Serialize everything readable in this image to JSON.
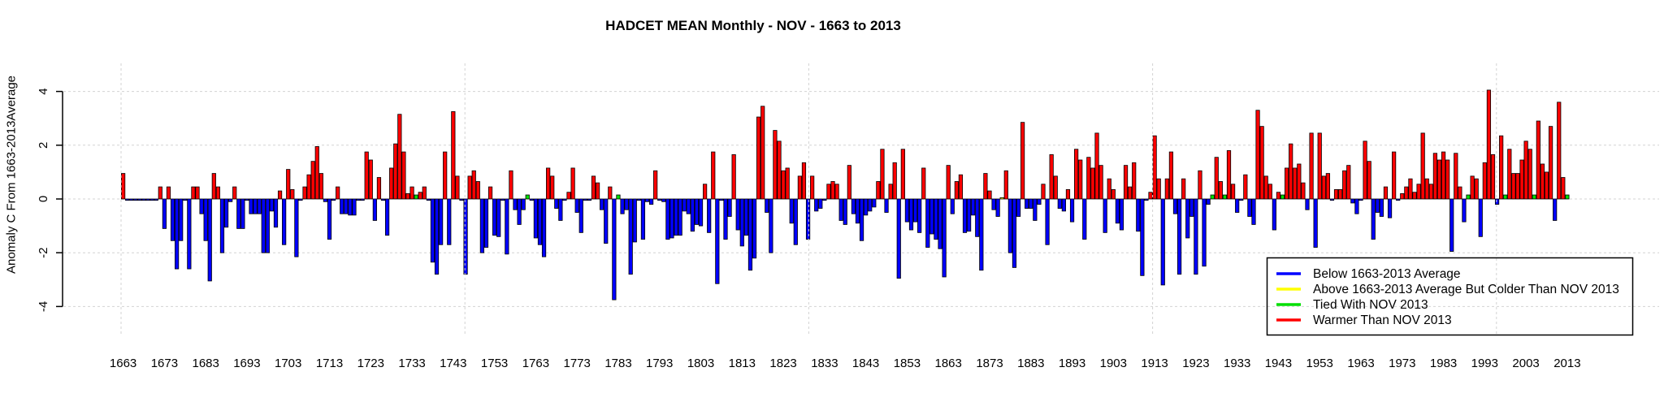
{
  "title": "HADCET MEAN Monthly - NOV - 1663 to 2013",
  "y_axis": {
    "label": "Anomaly C From 1663-2013Average",
    "ticks": [
      -4,
      -2,
      0,
      2,
      4
    ]
  },
  "x_axis": {
    "tick_years": [
      1663,
      1673,
      1683,
      1693,
      1703,
      1713,
      1723,
      1733,
      1743,
      1753,
      1763,
      1773,
      1783,
      1793,
      1803,
      1813,
      1823,
      1833,
      1843,
      1853,
      1863,
      1873,
      1883,
      1893,
      1903,
      1913,
      1923,
      1933,
      1943,
      1953,
      1963,
      1973,
      1983,
      1993,
      2003,
      2013
    ]
  },
  "legend": {
    "items": [
      {
        "label": "Below 1663-2013 Average",
        "color": "#0000FF"
      },
      {
        "label": "Above 1663-2013 Average But Colder Than NOV 2013",
        "color": "#FFFF00"
      },
      {
        "label": "Tied With NOV 2013",
        "color": "#00DF00"
      },
      {
        "label": "Warmer Than NOV 2013",
        "color": "#FF0000"
      }
    ]
  },
  "chart_data": {
    "type": "bar",
    "title": "HADCET MEAN Monthly - NOV - 1663 to 2013",
    "xlabel": "",
    "ylabel": "Anomaly C From 1663-2013Average",
    "ylim": [
      -4,
      4
    ],
    "grid": true,
    "legend_position": "bottom-right",
    "start_year": 1663,
    "end_year": 2013,
    "values": [
      0.95,
      -0.05,
      -0.05,
      -0.05,
      -0.05,
      -0.05,
      -0.05,
      -0.05,
      -0.05,
      0.45,
      -1.1,
      0.45,
      -1.55,
      -2.6,
      -1.55,
      -0.05,
      -2.6,
      0.45,
      0.45,
      -0.55,
      -1.55,
      -3.05,
      0.95,
      0.45,
      -2.0,
      -1.05,
      -0.1,
      0.45,
      -1.1,
      -1.1,
      -0.05,
      -0.55,
      -0.55,
      -0.55,
      -2.0,
      -2.0,
      -0.45,
      -1.05,
      0.3,
      -1.7,
      1.1,
      0.35,
      -2.15,
      -0.05,
      0.45,
      0.9,
      1.4,
      1.95,
      0.95,
      -0.1,
      -1.5,
      -0.05,
      0.45,
      -0.55,
      -0.55,
      -0.6,
      -0.6,
      -0.05,
      -0.05,
      1.75,
      1.45,
      -0.8,
      0.8,
      -0.05,
      -1.35,
      1.15,
      2.05,
      3.15,
      1.75,
      0.2,
      0.45,
      0.15,
      0.25,
      0.45,
      -0.05,
      -2.35,
      -2.8,
      -1.7,
      1.75,
      -1.7,
      3.25,
      0.85,
      -0.05,
      -2.8,
      0.85,
      1.05,
      0.65,
      -2.0,
      -1.8,
      0.45,
      -1.35,
      -1.4,
      -0.05,
      -2.05,
      1.05,
      -0.4,
      -0.95,
      -0.4,
      0.15,
      -0.05,
      -1.45,
      -1.7,
      -2.15,
      1.15,
      0.85,
      -0.35,
      -0.8,
      -0.05,
      0.25,
      1.15,
      -0.5,
      -1.25,
      -0.05,
      -0.05,
      0.85,
      0.6,
      -0.4,
      -1.65,
      0.45,
      -3.75,
      0.15,
      -0.55,
      -0.4,
      -2.8,
      -1.6,
      -0.05,
      -1.5,
      -0.1,
      -0.2,
      1.05,
      -0.05,
      -0.1,
      -1.5,
      -1.45,
      -1.35,
      -1.35,
      -0.45,
      -0.55,
      -1.2,
      -0.95,
      -1.0,
      0.55,
      -1.25,
      1.75,
      -3.15,
      -0.05,
      -1.5,
      -0.65,
      1.65,
      -1.15,
      -1.75,
      -1.35,
      -2.65,
      -2.2,
      3.05,
      3.45,
      -0.5,
      -2.0,
      2.55,
      2.15,
      1.05,
      1.15,
      -0.9,
      -1.7,
      0.85,
      1.35,
      -1.5,
      0.85,
      -0.45,
      -0.35,
      -0.05,
      0.55,
      0.65,
      0.55,
      -0.8,
      -0.95,
      1.25,
      -0.55,
      -0.9,
      -1.55,
      -0.6,
      -0.45,
      -0.3,
      0.65,
      1.85,
      -0.5,
      0.55,
      1.35,
      -2.95,
      1.85,
      -0.85,
      -1.15,
      -0.85,
      -1.25,
      1.15,
      -1.8,
      -1.3,
      -1.5,
      -1.85,
      -2.9,
      1.25,
      -0.55,
      0.65,
      0.9,
      -1.25,
      -1.2,
      -0.6,
      -1.4,
      -2.65,
      0.95,
      0.3,
      -0.4,
      -0.65,
      0.05,
      1.05,
      -2.0,
      -2.55,
      -0.65,
      2.85,
      -0.35,
      -0.35,
      -0.8,
      -0.2,
      0.55,
      -1.7,
      1.65,
      0.85,
      -0.35,
      -0.45,
      0.35,
      -0.85,
      1.85,
      1.45,
      -1.5,
      1.55,
      1.15,
      2.45,
      1.25,
      -1.25,
      0.75,
      0.35,
      -0.9,
      -1.15,
      1.25,
      0.45,
      1.35,
      -1.2,
      -2.85,
      -0.05,
      0.25,
      2.35,
      0.75,
      -3.2,
      0.75,
      1.75,
      -0.55,
      -2.8,
      0.75,
      -1.45,
      -0.65,
      -2.8,
      1.05,
      -2.5,
      -0.2,
      0.15,
      1.55,
      0.65,
      0.15,
      1.8,
      0.55,
      -0.5,
      -0.05,
      0.9,
      -0.65,
      -0.95,
      3.3,
      2.7,
      0.85,
      0.55,
      -1.15,
      0.25,
      0.15,
      1.15,
      2.05,
      1.15,
      1.3,
      0.6,
      -0.4,
      2.45,
      -1.8,
      2.45,
      0.85,
      0.95,
      -0.05,
      0.35,
      0.35,
      1.05,
      1.25,
      -0.15,
      -0.55,
      -0.05,
      2.15,
      1.4,
      -1.5,
      -0.5,
      -0.65,
      0.45,
      -0.7,
      1.75,
      -0.05,
      0.2,
      0.45,
      0.75,
      0.25,
      0.55,
      2.45,
      0.75,
      0.55,
      1.7,
      1.45,
      1.75,
      1.45,
      -1.95,
      1.7,
      0.45,
      -0.85,
      0.15,
      0.85,
      0.75,
      -1.4,
      1.35,
      4.05,
      1.65,
      -0.2,
      2.35,
      0.15,
      1.85,
      0.95,
      0.95,
      1.45,
      2.15,
      1.85,
      0.15,
      2.9,
      1.3,
      1.0,
      2.7,
      -0.8,
      3.6,
      0.8,
      0.15
    ],
    "tied_years": [
      1734,
      1761,
      1783,
      1927,
      1930,
      1944,
      1989,
      1998,
      2005,
      2013
    ],
    "above_but_colder_years": [
      1876
    ],
    "colors": {
      "below_average": "#0000FF",
      "above_but_colder": "#FFFF00",
      "tied": "#00DF00",
      "warmer": "#FF0000",
      "gridline": "#D3D3D3",
      "bar_outline": "#000000"
    }
  }
}
